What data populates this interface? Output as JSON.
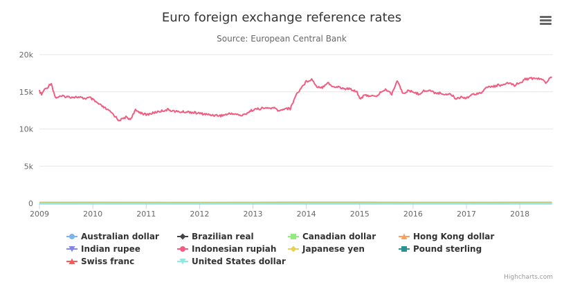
{
  "chart_data": {
    "type": "line",
    "title": "Euro foreign exchange reference rates",
    "subtitle": "Source: European Central Bank",
    "xlabel": "",
    "ylabel": "",
    "xlim": [
      2009.0,
      2018.62
    ],
    "ylim": [
      0,
      20000
    ],
    "x_ticks": [
      "2009",
      "2010",
      "2011",
      "2012",
      "2013",
      "2014",
      "2015",
      "2016",
      "2017",
      "2018"
    ],
    "y_ticks": [
      {
        "value": 0,
        "label": "0"
      },
      {
        "value": 5000,
        "label": "5k"
      },
      {
        "value": 10000,
        "label": "10k"
      },
      {
        "value": 15000,
        "label": "15k"
      },
      {
        "value": 20000,
        "label": "20k"
      }
    ],
    "grid": true,
    "legend_position": "bottom",
    "series": [
      {
        "name": "Australian dollar",
        "color": "#7cb5ec",
        "marker": "circle",
        "x": [
          2009.0,
          2010.0,
          2011.0,
          2012.0,
          2013.0,
          2014.0,
          2015.0,
          2016.0,
          2017.0,
          2018.0,
          2018.6
        ],
        "values": [
          1.9,
          1.5,
          1.35,
          1.25,
          1.35,
          1.47,
          1.45,
          1.5,
          1.45,
          1.57,
          1.57
        ]
      },
      {
        "name": "Brazilian real",
        "color": "#434348",
        "marker": "diamond",
        "x": [
          2009.0,
          2010.0,
          2011.0,
          2012.0,
          2013.0,
          2014.0,
          2015.0,
          2016.0,
          2017.0,
          2018.0,
          2018.6
        ],
        "values": [
          3.1,
          2.45,
          2.3,
          2.5,
          2.85,
          3.2,
          3.7,
          3.9,
          3.5,
          3.9,
          4.5
        ]
      },
      {
        "name": "Canadian dollar",
        "color": "#90ed7d",
        "marker": "square",
        "x": [
          2009.0,
          2010.0,
          2011.0,
          2012.0,
          2013.0,
          2014.0,
          2015.0,
          2016.0,
          2017.0,
          2018.0,
          2018.6
        ],
        "values": [
          1.6,
          1.35,
          1.35,
          1.3,
          1.35,
          1.47,
          1.41,
          1.47,
          1.45,
          1.5,
          1.53
        ]
      },
      {
        "name": "Hong Kong dollar",
        "color": "#f7a35c",
        "marker": "triangle",
        "x": [
          2009.0,
          2010.0,
          2011.0,
          2012.0,
          2013.0,
          2014.0,
          2015.0,
          2016.0,
          2017.0,
          2018.0,
          2018.6
        ],
        "values": [
          10.3,
          10.4,
          10.8,
          10.0,
          10.3,
          10.6,
          8.5,
          8.6,
          8.8,
          9.4,
          9.2
        ]
      },
      {
        "name": "Indian rupee",
        "color": "#8085e9",
        "marker": "triangle-down",
        "x": [
          2009.0,
          2010.0,
          2011.0,
          2012.0,
          2013.0,
          2014.0,
          2015.0,
          2016.0,
          2017.0,
          2018.0,
          2018.6
        ],
        "values": [
          63.0,
          60.5,
          64.0,
          68.0,
          77.0,
          81.0,
          71.0,
          74.0,
          73.0,
          78.0,
          80.0
        ]
      },
      {
        "name": "Indonesian rupiah",
        "color": "#f15c80",
        "marker": "circle",
        "x": [
          2009.0,
          2009.04,
          2009.08,
          2009.15,
          2009.22,
          2009.27,
          2009.3,
          2009.35,
          2009.45,
          2009.55,
          2009.7,
          2009.85,
          2009.95,
          2010.1,
          2010.25,
          2010.35,
          2010.42,
          2010.48,
          2010.55,
          2010.62,
          2010.7,
          2010.8,
          2010.9,
          2011.0,
          2011.2,
          2011.4,
          2011.6,
          2011.8,
          2012.0,
          2012.2,
          2012.4,
          2012.6,
          2012.8,
          2013.0,
          2013.2,
          2013.4,
          2013.5,
          2013.6,
          2013.7,
          2013.8,
          2013.9,
          2014.0,
          2014.1,
          2014.2,
          2014.3,
          2014.4,
          2014.5,
          2014.6,
          2014.7,
          2014.8,
          2014.9,
          2014.95,
          2015.0,
          2015.1,
          2015.2,
          2015.3,
          2015.4,
          2015.5,
          2015.6,
          2015.7,
          2015.75,
          2015.8,
          2015.9,
          2016.0,
          2016.1,
          2016.2,
          2016.3,
          2016.4,
          2016.5,
          2016.6,
          2016.7,
          2016.8,
          2016.9,
          2017.0,
          2017.1,
          2017.2,
          2017.3,
          2017.4,
          2017.5,
          2017.6,
          2017.7,
          2017.8,
          2017.9,
          2018.0,
          2018.1,
          2018.2,
          2018.3,
          2018.4,
          2018.5,
          2018.55,
          2018.6
        ],
        "values": [
          15100,
          14600,
          15200,
          15600,
          16200,
          14900,
          14200,
          14300,
          14400,
          14300,
          14300,
          14100,
          14200,
          13400,
          12700,
          12200,
          11700,
          11200,
          11300,
          11600,
          11300,
          12500,
          12200,
          11900,
          12300,
          12600,
          12300,
          12300,
          12100,
          11900,
          11800,
          12100,
          11800,
          12600,
          12800,
          12800,
          12400,
          12800,
          12700,
          14500,
          15500,
          16400,
          16700,
          15700,
          15600,
          16300,
          15600,
          15700,
          15400,
          15400,
          15200,
          15000,
          14100,
          14500,
          14500,
          14300,
          15000,
          15300,
          14700,
          16500,
          15800,
          14800,
          15100,
          15000,
          14700,
          15100,
          15200,
          14900,
          14800,
          14700,
          14700,
          14100,
          14300,
          14200,
          14600,
          14800,
          15000,
          15700,
          15700,
          15900,
          15900,
          16200,
          15900,
          16200,
          16700,
          16800,
          16800,
          16700,
          16200,
          16900,
          16900
        ]
      },
      {
        "name": "Japanese yen",
        "color": "#e4d354",
        "marker": "diamond",
        "x": [
          2009.0,
          2010.0,
          2011.0,
          2012.0,
          2013.0,
          2014.0,
          2015.0,
          2016.0,
          2017.0,
          2018.0,
          2018.6
        ],
        "values": [
          120,
          128,
          110,
          100,
          125,
          140,
          135,
          120,
          120,
          130,
          130
        ]
      },
      {
        "name": "Pound sterling",
        "color": "#2b908f",
        "marker": "square",
        "x": [
          2009.0,
          2010.0,
          2011.0,
          2012.0,
          2013.0,
          2014.0,
          2015.0,
          2016.0,
          2017.0,
          2018.0,
          2018.6
        ],
        "values": [
          0.95,
          0.88,
          0.85,
          0.82,
          0.85,
          0.82,
          0.74,
          0.8,
          0.88,
          0.88,
          0.88
        ]
      },
      {
        "name": "Swiss franc",
        "color": "#f45b5b",
        "marker": "triangle",
        "x": [
          2009.0,
          2010.0,
          2011.0,
          2012.0,
          2013.0,
          2014.0,
          2015.0,
          2016.0,
          2017.0,
          2018.0,
          2018.6
        ],
        "values": [
          1.5,
          1.45,
          1.25,
          1.2,
          1.23,
          1.22,
          1.05,
          1.09,
          1.1,
          1.17,
          1.15
        ]
      },
      {
        "name": "United States dollar",
        "color": "#91e8e1",
        "marker": "triangle-down",
        "x": [
          2009.0,
          2010.0,
          2011.0,
          2012.0,
          2013.0,
          2014.0,
          2015.0,
          2016.0,
          2017.0,
          2018.0,
          2018.6
        ],
        "values": [
          1.32,
          1.35,
          1.33,
          1.3,
          1.33,
          1.37,
          1.1,
          1.1,
          1.05,
          1.2,
          1.17
        ]
      }
    ]
  },
  "credits": "Highcharts.com"
}
